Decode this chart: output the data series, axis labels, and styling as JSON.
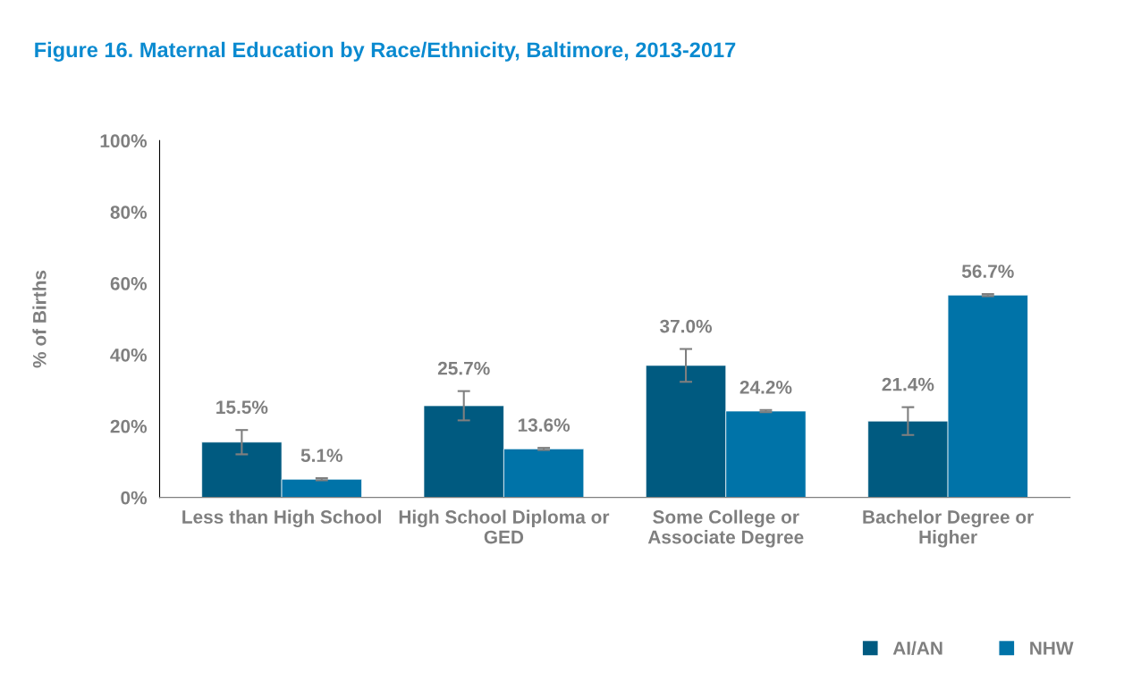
{
  "chart_data": {
    "type": "bar",
    "title": "Figure 16. Maternal Education by Race/Ethnicity, Baltimore, 2013-2017",
    "ylabel": "% of Births",
    "categories": [
      "Less than High School",
      "High School Diploma or\nGED",
      "Some College or\nAssociate Degree",
      "Bachelor Degree or\nHigher"
    ],
    "series": [
      {
        "name": "AI/AN",
        "color": "#005a80",
        "values": [
          15.5,
          25.7,
          37.0,
          21.4
        ],
        "errors": [
          3.4,
          4.1,
          4.6,
          3.9
        ],
        "value_labels": [
          "15.5%",
          "25.7%",
          "37.0%",
          "21.4%"
        ]
      },
      {
        "name": "NHW",
        "color": "#0073a8",
        "values": [
          5.1,
          13.6,
          24.2,
          56.7
        ],
        "errors": [
          0.3,
          0.3,
          0.3,
          0.3
        ],
        "value_labels": [
          "5.1%",
          "13.6%",
          "24.2%",
          "56.7%"
        ]
      }
    ],
    "ylim": [
      0,
      100
    ],
    "yticks": [
      {
        "value": 0,
        "label": "0%"
      },
      {
        "value": 20,
        "label": "20%"
      },
      {
        "value": 40,
        "label": "40%"
      },
      {
        "value": 60,
        "label": "60%"
      },
      {
        "value": 80,
        "label": "80%"
      },
      {
        "value": 100,
        "label": "100%"
      }
    ],
    "grid": false,
    "legend": "bottom right"
  }
}
